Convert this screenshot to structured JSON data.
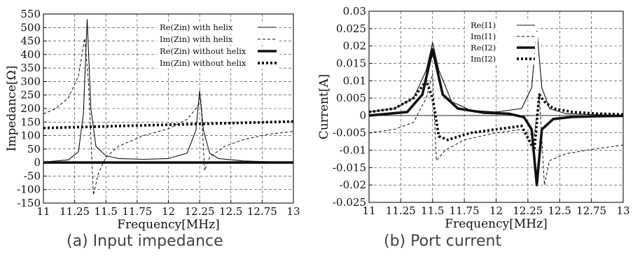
{
  "chart_data": [
    {
      "type": "line",
      "panel": "a",
      "caption": "(a)  Input impedance",
      "xlabel": "Frequency[MHz]",
      "ylabel": "Impedance[Ω]",
      "xlim": [
        11,
        13
      ],
      "ylim": [
        -150,
        550
      ],
      "xticks": [
        "11",
        "11.25",
        "11.5",
        "11.75",
        "12",
        "12.25",
        "12.5",
        "12.75",
        "13"
      ],
      "yticks": [
        "550",
        "500",
        "450",
        "400",
        "350",
        "300",
        "250",
        "200",
        "150",
        "100",
        "50",
        "0",
        "-50",
        "-100",
        "-150"
      ],
      "grid": true,
      "legend_position": "top-right",
      "series": [
        {
          "name": "Re(Zin) with helix",
          "style": "thin-solid",
          "x": [
            11,
            11.2,
            11.28,
            11.32,
            11.35,
            11.38,
            11.42,
            11.5,
            11.6,
            11.8,
            12.0,
            12.15,
            12.22,
            12.25,
            12.28,
            12.33,
            12.4,
            12.6,
            12.8,
            13
          ],
          "y": [
            2,
            10,
            40,
            180,
            530,
            200,
            60,
            25,
            15,
            12,
            15,
            35,
            120,
            265,
            120,
            35,
            15,
            6,
            3,
            2
          ]
        },
        {
          "name": "Im(Zin) with helix",
          "style": "thin-dashed",
          "x": [
            11,
            11.1,
            11.2,
            11.28,
            11.33,
            11.36,
            11.4,
            11.44,
            11.5,
            11.6,
            11.8,
            12.0,
            12.15,
            12.22,
            12.26,
            12.29,
            12.33,
            12.45,
            12.6,
            12.8,
            13
          ],
          "y": [
            180,
            200,
            240,
            320,
            460,
            300,
            -120,
            -40,
            20,
            60,
            100,
            125,
            160,
            200,
            230,
            -30,
            20,
            60,
            85,
            105,
            115
          ]
        },
        {
          "name": "Re(Zin) without helix",
          "style": "thick-solid",
          "x": [
            11,
            13
          ],
          "y": [
            0,
            0
          ]
        },
        {
          "name": "Im(Zin) without helix",
          "style": "thick-dotted",
          "x": [
            11,
            12,
            13
          ],
          "y": [
            128,
            140,
            152
          ]
        }
      ]
    },
    {
      "type": "line",
      "panel": "b",
      "caption": "(b)  Port current",
      "xlabel": "Frequency[MHz]",
      "ylabel": "Current[A]",
      "xlim": [
        11,
        13
      ],
      "ylim": [
        -0.025,
        0.03
      ],
      "xticks": [
        "11",
        "11.25",
        "11.5",
        "11.75",
        "12",
        "12.25",
        "12.5",
        "12.75",
        "13"
      ],
      "yticks": [
        "0.03",
        "0.025",
        "0.02",
        "0.015",
        "0.01",
        "0.005",
        "0",
        "-0.005",
        "-0.01",
        "-0.015",
        "-0.02",
        "-0.025"
      ],
      "grid": true,
      "legend_position": "top-right",
      "series": [
        {
          "name": "Re(I1)",
          "style": "thin-solid",
          "x": [
            11,
            11.2,
            11.35,
            11.45,
            11.5,
            11.55,
            11.65,
            11.8,
            12.0,
            12.2,
            12.28,
            12.32,
            12.36,
            12.42,
            12.55,
            12.8,
            13
          ],
          "y": [
            0.001,
            0.002,
            0.005,
            0.013,
            0.021,
            0.013,
            0.004,
            0.0015,
            0.001,
            0.002,
            0.008,
            0.025,
            0.008,
            0.002,
            0.0005,
            0.0002,
            0.0001
          ]
        },
        {
          "name": "Im(I1)",
          "style": "thin-dashed",
          "x": [
            11,
            11.2,
            11.35,
            11.45,
            11.5,
            11.53,
            11.6,
            11.75,
            12.0,
            12.2,
            12.3,
            12.34,
            12.38,
            12.42,
            12.55,
            12.8,
            13
          ],
          "y": [
            -0.005,
            -0.004,
            -0.002,
            0.005,
            0.012,
            -0.013,
            -0.01,
            -0.007,
            -0.005,
            -0.004,
            -0.006,
            0.006,
            -0.02,
            -0.013,
            -0.011,
            -0.0095,
            -0.0085
          ]
        },
        {
          "name": "Re(I2)",
          "style": "thick-solid",
          "x": [
            11,
            11.3,
            11.42,
            11.5,
            11.58,
            11.7,
            11.9,
            12.1,
            12.22,
            12.28,
            12.32,
            12.36,
            12.45,
            12.6,
            12.8,
            13
          ],
          "y": [
            0,
            0.001,
            0.006,
            0.019,
            0.006,
            0.002,
            0.0008,
            0.0005,
            -0.0005,
            -0.004,
            -0.02,
            -0.004,
            -0.001,
            -0.0004,
            -0.0002,
            -0.0001
          ]
        },
        {
          "name": "Im(I2)",
          "style": "thick-dotted",
          "x": [
            11,
            11.2,
            11.35,
            11.45,
            11.5,
            11.55,
            11.62,
            11.8,
            12.0,
            12.2,
            12.3,
            12.34,
            12.38,
            12.45,
            12.6,
            12.8,
            13
          ],
          "y": [
            0.001,
            0.002,
            0.005,
            0.01,
            0.005,
            -0.006,
            -0.007,
            -0.005,
            -0.004,
            -0.003,
            -0.01,
            0.006,
            0.004,
            0.002,
            0.001,
            0.0005,
            0.0003
          ]
        }
      ]
    }
  ]
}
